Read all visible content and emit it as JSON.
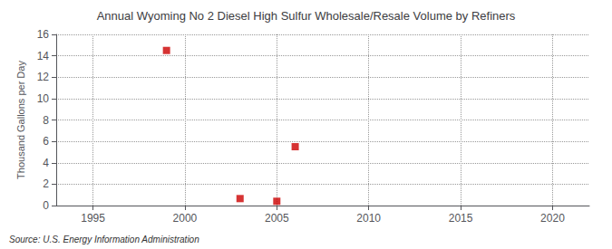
{
  "chart_data": {
    "type": "scatter",
    "title": "Annual Wyoming No 2 Diesel High Sulfur Wholesale/Resale Volume by Refiners",
    "ylabel": "Thousand Gallons per Day",
    "annotation": "Source: U.S. Energy Information Administration",
    "x": [
      1999,
      2003,
      2005,
      2006
    ],
    "values": [
      14.5,
      0.65,
      0.4,
      5.5
    ],
    "color": "#cc0000",
    "marker": "square",
    "xlim": [
      1993,
      2022
    ],
    "ylim": [
      0,
      16
    ],
    "xticks": [
      1995,
      2000,
      2005,
      2010,
      2015,
      2020
    ],
    "yticks": [
      0,
      2,
      4,
      6,
      8,
      10,
      12,
      14,
      16
    ],
    "grid": true
  }
}
